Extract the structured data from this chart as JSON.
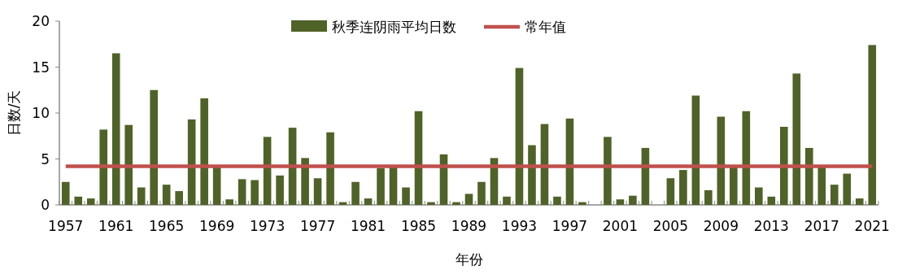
{
  "chart_data": {
    "type": "bar",
    "xlabel": "年份",
    "ylabel": "日数/天",
    "categories": [
      "1957",
      null,
      null,
      null,
      "1961",
      null,
      null,
      null,
      "1965",
      null,
      null,
      null,
      "1969",
      null,
      null,
      null,
      "1973",
      null,
      null,
      null,
      "1977",
      null,
      null,
      null,
      "1981",
      null,
      null,
      null,
      "1985",
      null,
      null,
      null,
      "1989",
      null,
      null,
      null,
      "1993",
      null,
      null,
      null,
      "1997",
      null,
      null,
      null,
      "2001",
      null,
      null,
      null,
      "2005",
      null,
      null,
      null,
      "2009",
      null,
      null,
      null,
      "2013",
      null,
      null,
      null,
      "2017",
      null,
      null,
      null,
      "2021"
    ],
    "series": [
      {
        "name": "秋季连阴雨平均日数",
        "color": "#4f6228",
        "values": [
          2.5,
          0.9,
          0.7,
          8.2,
          16.5,
          8.7,
          1.9,
          12.5,
          2.2,
          1.5,
          9.3,
          11.6,
          4.2,
          0.6,
          2.8,
          2.7,
          7.4,
          3.2,
          8.4,
          5.1,
          2.9,
          7.9,
          0.3,
          2.5,
          0.7,
          4.0,
          4.3,
          1.9,
          10.2,
          0.3,
          5.5,
          0.3,
          1.2,
          2.5,
          5.1,
          0.9,
          14.9,
          6.5,
          8.8,
          0.9,
          9.4,
          0.3,
          0,
          7.4,
          0.6,
          1.0,
          6.2,
          0,
          2.9,
          3.8,
          11.9,
          1.6,
          9.6,
          4.2,
          10.2,
          1.9,
          0.9,
          8.5,
          14.3,
          6.2,
          4.2,
          2.2,
          3.4,
          0.7,
          17.4
        ]
      }
    ],
    "ref_lines": [
      {
        "axis": "y",
        "value": 4.2,
        "label": "常年值",
        "color": "#c0504d"
      }
    ],
    "ylim": [
      0,
      20
    ],
    "yticks": [
      0,
      5,
      10,
      15,
      20
    ],
    "legend": "top",
    "grid": false
  }
}
